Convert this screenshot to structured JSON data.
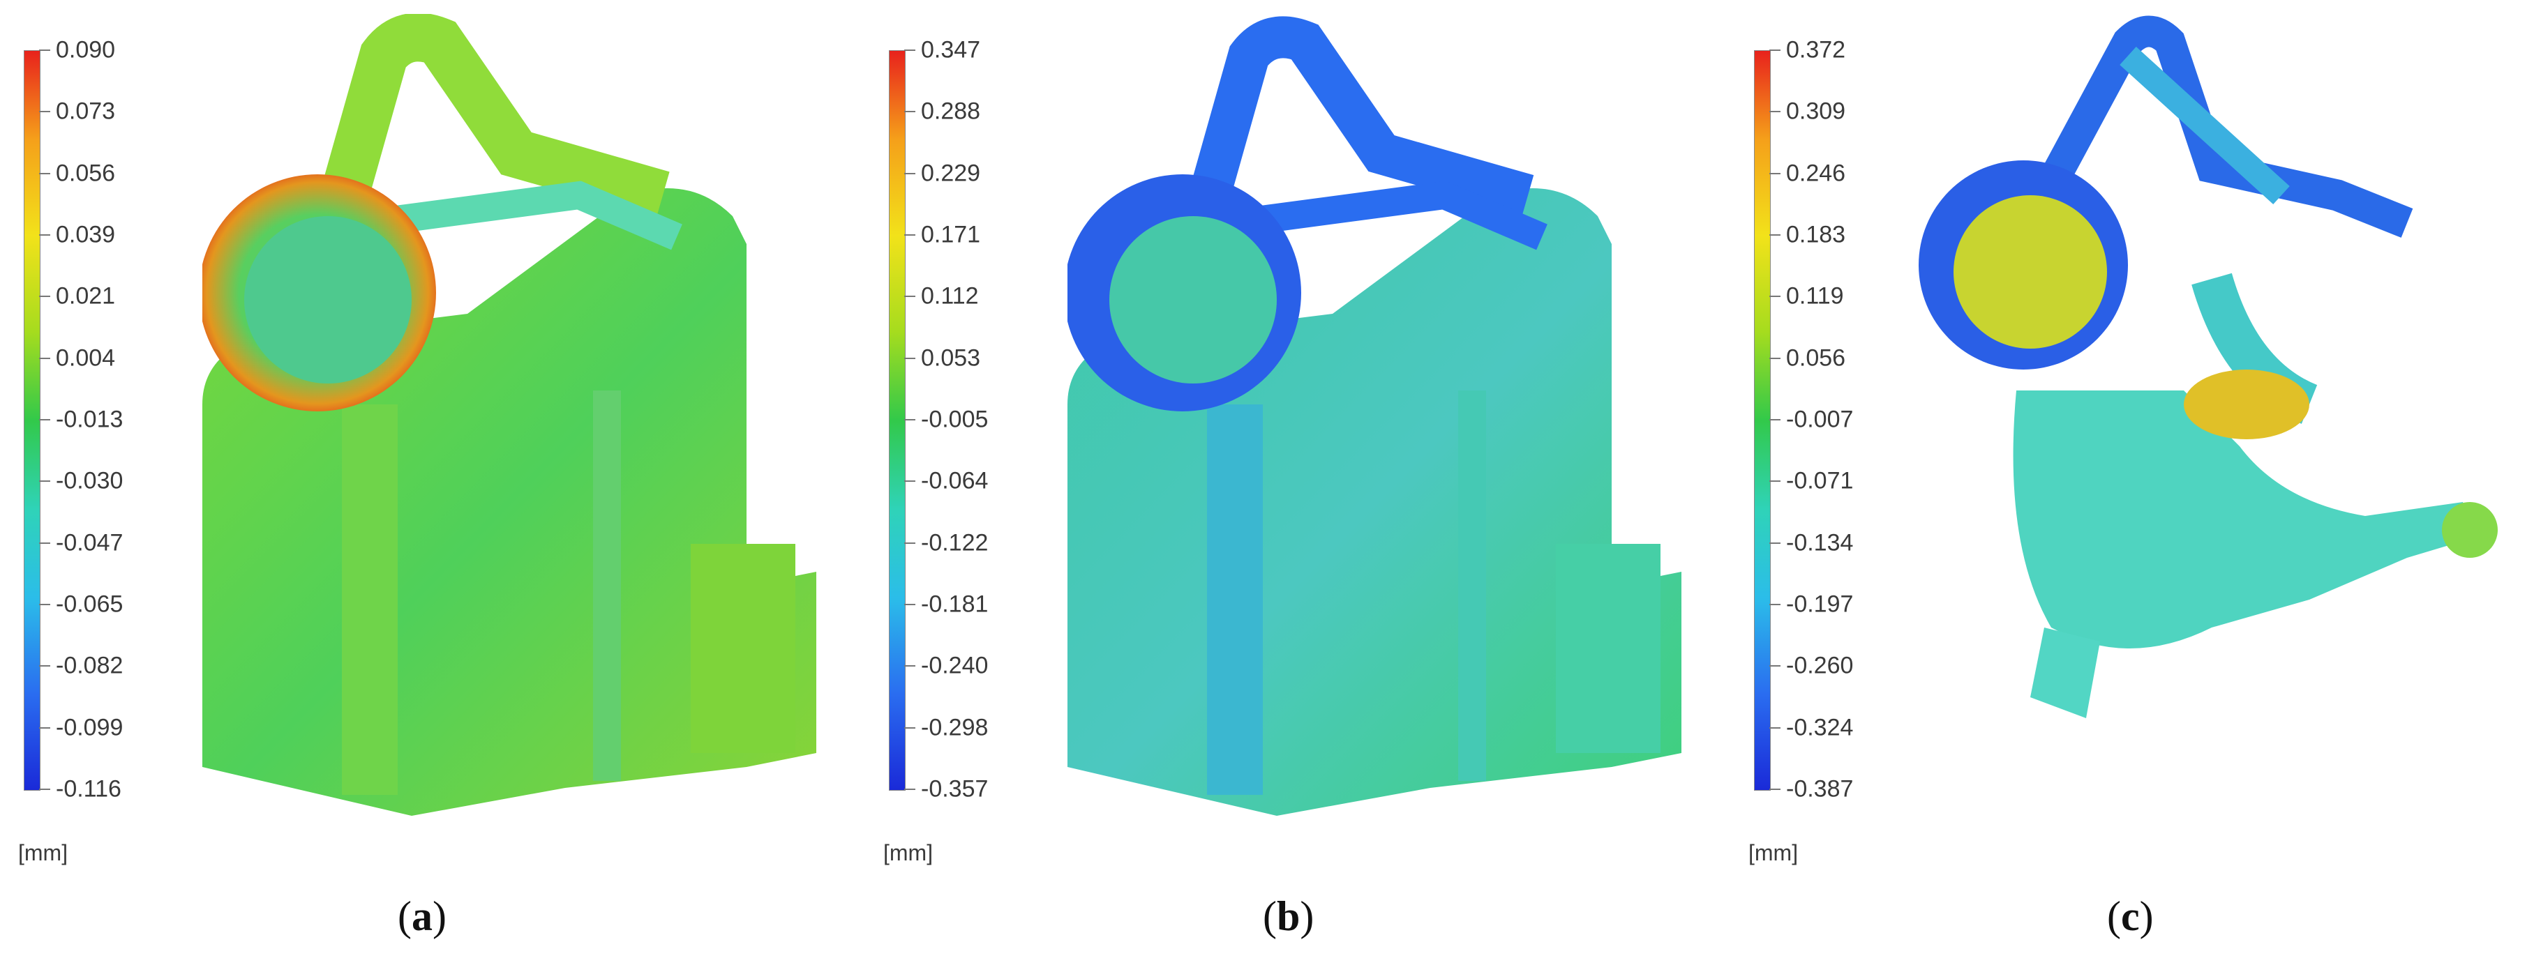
{
  "panels": [
    {
      "caption_open": "(",
      "caption_letter": "a",
      "caption_close": ")",
      "unit": "[mm]",
      "ticks": [
        "0.090",
        "0.073",
        "0.056",
        "0.039",
        "0.021",
        "0.004",
        "-0.013",
        "-0.030",
        "-0.047",
        "-0.065",
        "-0.082",
        "-0.099",
        "-0.116"
      ]
    },
    {
      "caption_open": "(",
      "caption_letter": "b",
      "caption_close": ")",
      "unit": "[mm]",
      "ticks": [
        "0.347",
        "0.288",
        "0.229",
        "0.171",
        "0.112",
        "0.053",
        "-0.005",
        "-0.064",
        "-0.122",
        "-0.181",
        "-0.240",
        "-0.298",
        "-0.357"
      ]
    },
    {
      "caption_open": "(",
      "caption_letter": "c",
      "caption_close": ")",
      "unit": "[mm]",
      "ticks": [
        "0.372",
        "0.309",
        "0.246",
        "0.183",
        "0.119",
        "0.056",
        "-0.007",
        "-0.071",
        "-0.134",
        "-0.197",
        "-0.260",
        "-0.324",
        "-0.387"
      ]
    }
  ],
  "colorscale": [
    "#e8221c",
    "#f5a01a",
    "#f2e21a",
    "#a6dc1e",
    "#32c94a",
    "#2fd3b8",
    "#2bbde9",
    "#2a6df0",
    "#1a2ad8"
  ]
}
